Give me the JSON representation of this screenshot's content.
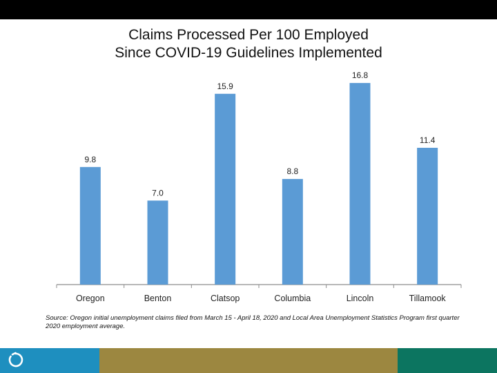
{
  "title_lines": [
    "Claims Processed Per 100 Employed",
    "Since COVID-19 Guidelines Implemented"
  ],
  "source_note": "Source: Oregon initial unemployment claims filed from March 15 - April 18, 2020 and Local Area Unemployment Statistics Program first quarter 2020 employment average.",
  "colors": {
    "bar": "#5b9bd5",
    "axis": "#8c8c8c",
    "footer_blue": "#1e8fbf",
    "footer_gold": "#9c8740",
    "footer_green": "#0c7560"
  },
  "logo_icon": "oregon-logo-icon",
  "chart_data": {
    "type": "bar",
    "title": "Claims Processed Per 100 Employed Since COVID-19 Guidelines Implemented",
    "categories": [
      "Oregon",
      "Benton",
      "Clatsop",
      "Columbia",
      "Lincoln",
      "Tillamook"
    ],
    "values": [
      9.8,
      7.0,
      15.9,
      8.8,
      16.8,
      11.4
    ],
    "value_labels": [
      "9.8",
      "7.0",
      "15.9",
      "8.8",
      "16.8",
      "11.4"
    ],
    "xlabel": "",
    "ylabel": "",
    "ylim": [
      0,
      17.5
    ],
    "grid": false,
    "legend": "none"
  }
}
